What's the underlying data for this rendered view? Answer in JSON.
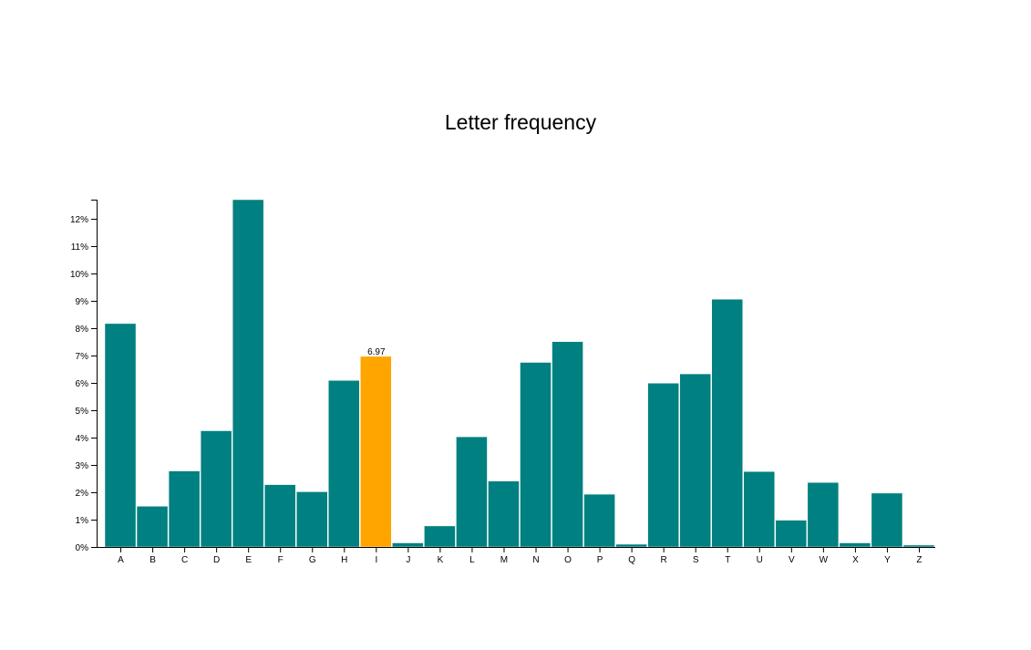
{
  "chart_data": {
    "type": "bar",
    "title": "Letter frequency",
    "xlabel": "",
    "ylabel": "",
    "categories": [
      "A",
      "B",
      "C",
      "D",
      "E",
      "F",
      "G",
      "H",
      "I",
      "J",
      "K",
      "L",
      "M",
      "N",
      "O",
      "P",
      "Q",
      "R",
      "S",
      "T",
      "U",
      "V",
      "W",
      "X",
      "Y",
      "Z"
    ],
    "values": [
      8.17,
      1.49,
      2.78,
      4.25,
      12.7,
      2.28,
      2.02,
      6.09,
      6.97,
      0.15,
      0.77,
      4.03,
      2.41,
      6.75,
      7.51,
      1.93,
      0.1,
      5.99,
      6.33,
      9.06,
      2.76,
      0.98,
      2.36,
      0.15,
      1.97,
      0.07
    ],
    "ylim": [
      0,
      12.7
    ],
    "y_ticks": [
      "0%",
      "1%",
      "2%",
      "3%",
      "4%",
      "5%",
      "6%",
      "7%",
      "8%",
      "9%",
      "10%",
      "11%",
      "12%"
    ],
    "bar_color": "#008080",
    "highlight_color": "#FFA500",
    "highlight_index": 8,
    "highlight_label": "6.97",
    "grid": false
  }
}
